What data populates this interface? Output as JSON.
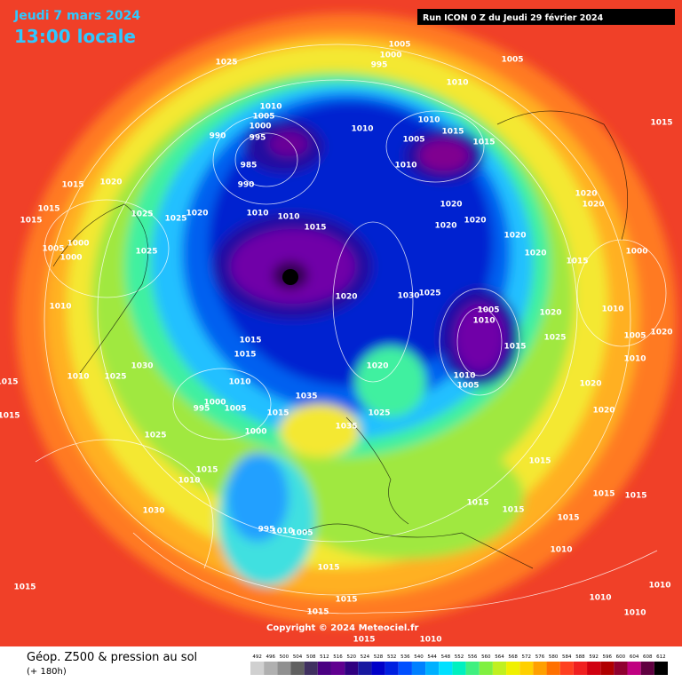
{
  "header": {
    "date": "Jeudi 7 mars 2024",
    "time": "13:00 locale",
    "run": "Run ICON 0 Z du Jeudi 29 février 2024"
  },
  "copyright": "Copyright © 2024 Meteociel.fr",
  "legend": {
    "title": "Géop. Z500 & pression au sol",
    "lead": "(+ 180h)",
    "levels": [
      492,
      496,
      500,
      504,
      508,
      512,
      516,
      520,
      524,
      528,
      532,
      536,
      540,
      544,
      548,
      552,
      556,
      560,
      564,
      568,
      572,
      576,
      580,
      584,
      588,
      592,
      596,
      600,
      604,
      608,
      612
    ],
    "colors": [
      "#d0d0d0",
      "#b0b0b0",
      "#909090",
      "#606060",
      "#403060",
      "#4b0082",
      "#600090",
      "#300080",
      "#1818a0",
      "#0000c8",
      "#0020e0",
      "#0050ff",
      "#0080ff",
      "#00b0ff",
      "#00e0ff",
      "#00f0c0",
      "#40f080",
      "#80f040",
      "#c0f020",
      "#f0f000",
      "#ffd000",
      "#ffa000",
      "#ff7000",
      "#ff4020",
      "#f02020",
      "#d00010",
      "#b00000",
      "#900030",
      "#c00080",
      "#600040",
      "#000000"
    ]
  },
  "pressure_labels": [
    1025,
    1005,
    1000,
    995,
    1005,
    1010,
    1010,
    1005,
    1000,
    990,
    995,
    985,
    990,
    1010,
    1010,
    1005,
    1015,
    1015,
    1010,
    1015,
    1015,
    1020,
    1015,
    1015,
    1025,
    1025,
    1020,
    1020,
    1020,
    1020,
    1020,
    1020,
    1005,
    1000,
    1000,
    1025,
    1010,
    1010,
    1015,
    1020,
    1030,
    1025,
    1005,
    1010,
    1015,
    1010,
    1030,
    1010,
    1025,
    1015,
    1015,
    1015,
    1015,
    1010,
    995,
    1000,
    1005,
    1000,
    1015,
    1035,
    1025,
    1020,
    1025,
    1035,
    1010,
    1005,
    1015,
    1010,
    1030,
    1015,
    1015,
    1015,
    1015,
    1015,
    1015,
    1010,
    1015,
    1015,
    1015,
    1015,
    1015,
    1010,
    1010,
    1010,
    1010,
    1005,
    1010,
    995,
    1020,
    1020,
    1015,
    1025,
    1020,
    1010,
    1005,
    1010,
    1020,
    1020,
    1000,
    1020
  ]
}
